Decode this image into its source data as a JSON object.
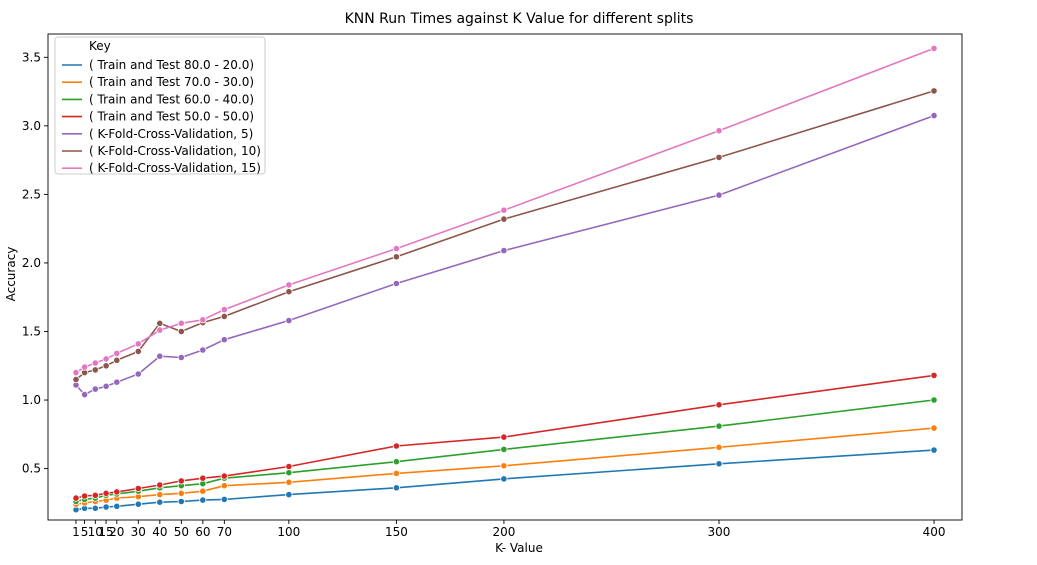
{
  "chart_data": {
    "type": "line",
    "title": "KNN Run Times against K Value for different splits",
    "xlabel": "K- Value",
    "ylabel": "Accuracy",
    "xlim": [
      -12,
      413
    ],
    "ylim": [
      0.125,
      3.67
    ],
    "x_ticks": [
      1,
      5,
      10,
      15,
      20,
      30,
      40,
      50,
      60,
      70,
      100,
      150,
      200,
      300,
      400
    ],
    "x_tick_labels": [
      "1",
      "5",
      "10",
      "15",
      "20",
      "30",
      "40",
      "50",
      "60",
      "70",
      "100",
      "150",
      "200",
      "300",
      "400"
    ],
    "y_ticks": [
      0.5,
      1.0,
      1.5,
      2.0,
      2.5,
      3.0,
      3.5
    ],
    "y_tick_labels": [
      "0.5",
      "1.0",
      "1.5",
      "2.0",
      "2.5",
      "3.0",
      "3.5"
    ],
    "grid": false,
    "legend_title": "Key",
    "legend_position": "top-left",
    "x": [
      1,
      5,
      10,
      15,
      20,
      30,
      40,
      50,
      60,
      70,
      100,
      150,
      200,
      300,
      400
    ],
    "series": [
      {
        "name": "( Train and Test 80.0 - 20.0)",
        "color": "#1f77b4",
        "values": [
          0.2,
          0.21,
          0.21,
          0.22,
          0.225,
          0.24,
          0.255,
          0.26,
          0.27,
          0.275,
          0.31,
          0.36,
          0.425,
          0.535,
          0.635
        ]
      },
      {
        "name": "( Train and Test 70.0 - 30.0)",
        "color": "#ff7f0e",
        "values": [
          0.24,
          0.25,
          0.26,
          0.27,
          0.285,
          0.295,
          0.31,
          0.32,
          0.335,
          0.375,
          0.4,
          0.465,
          0.52,
          0.655,
          0.795
        ]
      },
      {
        "name": "( Train and Test 60.0 - 40.0)",
        "color": "#2ca02c",
        "values": [
          0.26,
          0.275,
          0.285,
          0.305,
          0.315,
          0.335,
          0.36,
          0.375,
          0.39,
          0.43,
          0.47,
          0.55,
          0.64,
          0.81,
          1.0
        ]
      },
      {
        "name": "( Train and Test 50.0 - 50.0)",
        "color": "#d62728",
        "values": [
          0.285,
          0.3,
          0.305,
          0.32,
          0.33,
          0.355,
          0.38,
          0.41,
          0.43,
          0.445,
          0.515,
          0.665,
          0.73,
          0.965,
          1.18
        ]
      },
      {
        "name": "( K-Fold-Cross-Validation, 5)",
        "color": "#9467bd",
        "values": [
          1.11,
          1.04,
          1.08,
          1.1,
          1.13,
          1.19,
          1.32,
          1.31,
          1.365,
          1.44,
          1.58,
          1.85,
          2.09,
          2.495,
          3.075
        ]
      },
      {
        "name": "( K-Fold-Cross-Validation, 10)",
        "color": "#8c564b",
        "values": [
          1.15,
          1.2,
          1.22,
          1.25,
          1.29,
          1.355,
          1.56,
          1.5,
          1.565,
          1.61,
          1.79,
          2.045,
          2.32,
          2.77,
          3.255
        ]
      },
      {
        "name": "( K-Fold-Cross-Validation, 15)",
        "color": "#e377c2",
        "values": [
          1.2,
          1.24,
          1.27,
          1.3,
          1.34,
          1.41,
          1.51,
          1.56,
          1.585,
          1.66,
          1.84,
          2.105,
          2.385,
          2.965,
          3.565
        ]
      }
    ]
  }
}
